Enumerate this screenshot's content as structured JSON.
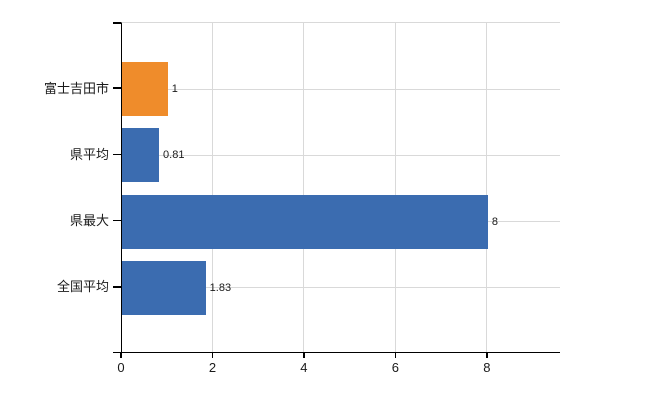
{
  "chart_data": {
    "type": "bar",
    "orientation": "horizontal",
    "title": "",
    "xlabel": "",
    "ylabel": "",
    "categories": [
      "富士吉田市",
      "県平均",
      "県最大",
      "全国平均"
    ],
    "values": [
      1,
      0.81,
      8,
      1.83
    ],
    "value_labels": [
      "1",
      "0.81",
      "8",
      "1.83"
    ],
    "bar_colors": [
      "#ef8c2b",
      "#3b6cb0",
      "#3b6cb0",
      "#3b6cb0"
    ],
    "xlim": [
      0,
      9.6
    ],
    "x_ticks": [
      0,
      2,
      4,
      6,
      8
    ],
    "x_tick_labels": [
      "0",
      "2",
      "4",
      "6",
      "8"
    ],
    "grid": true,
    "legend": false,
    "colors": {
      "bar_highlight": "#ef8c2b",
      "bar_default": "#3b6cb0",
      "grid": "#d9d9d9",
      "axis": "#000000",
      "text": "#1a1a1a",
      "background": "#ffffff"
    }
  }
}
